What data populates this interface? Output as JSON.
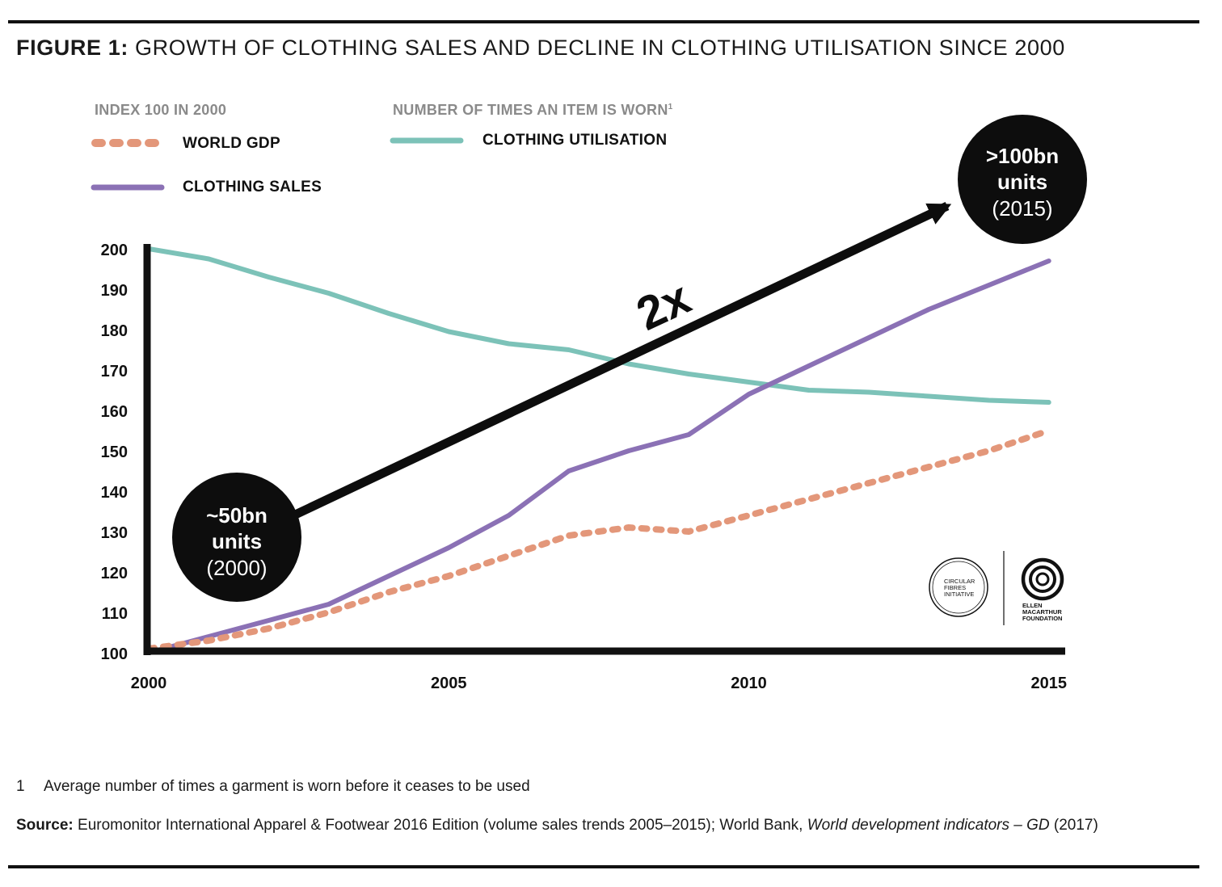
{
  "header": {
    "figure_label": "FIGURE 1:",
    "title": "GROWTH OF CLOTHING SALES AND DECLINE IN CLOTHING UTILISATION SINCE 2000"
  },
  "legend": {
    "left_heading": "INDEX 100 IN 2000",
    "right_heading": "NUMBER OF TIMES AN ITEM IS WORN",
    "right_heading_sup": "1",
    "items": {
      "gdp": "WORLD GDP",
      "sales": "CLOTHING SALES",
      "utilisation": "CLOTHING UTILISATION"
    }
  },
  "annotations": {
    "start": {
      "line1": "~50bn",
      "line2": "units",
      "line3": "(2000)"
    },
    "end": {
      "line1": ">100bn",
      "line2": "units",
      "line3": "(2015)"
    },
    "multiplier": "2x"
  },
  "logos": {
    "cfi": [
      "CIRCULAR",
      "FIBRES",
      "INITIATIVE"
    ],
    "emf": [
      "ELLEN",
      "MACARTHUR",
      "FOUNDATION"
    ]
  },
  "footnote": {
    "number": "1",
    "text": "Average number of times a garment is worn before it ceases to be used"
  },
  "source": {
    "label": "Source:",
    "text1": " Euromonitor International Apparel & Footwear 2016 Edition (volume sales trends 2005–2015); World Bank, ",
    "italic1": "World development indicators – GD",
    "text2": " (2017)"
  },
  "colors": {
    "gdp": "#e3977a",
    "sales": "#8b71b5",
    "utilisation": "#7cc2b8",
    "axis": "#111111",
    "annotation": "#0d0d0d"
  },
  "chart_data": {
    "type": "line",
    "ylim": [
      100,
      200
    ],
    "xlim": [
      2000,
      2015.3
    ],
    "y_ticks": [
      100,
      110,
      120,
      130,
      140,
      150,
      160,
      170,
      180,
      190,
      200
    ],
    "x_ticks": [
      "2000",
      "2005",
      "2010",
      "2015"
    ],
    "series": [
      {
        "name": "CLOTHING UTILISATION",
        "line_style": "solid",
        "x": [
          2000,
          2001,
          2002,
          2003,
          2004,
          2005,
          2006,
          2007,
          2008,
          2009,
          2010,
          2011,
          2012,
          2013,
          2014,
          2015
        ],
        "values": [
          200,
          197.5,
          193,
          189,
          184,
          179.5,
          176.5,
          175,
          171.5,
          169,
          167,
          165,
          164.5,
          163.5,
          162.5,
          162
        ]
      },
      {
        "name": "CLOTHING SALES",
        "line_style": "solid",
        "x": [
          2000,
          2001,
          2002,
          2003,
          2004,
          2005,
          2006,
          2007,
          2008,
          2009,
          2010,
          2011,
          2012,
          2013,
          2014,
          2015
        ],
        "values": [
          100,
          104,
          108,
          112,
          119,
          126,
          134,
          145,
          150,
          154,
          164,
          171,
          178,
          185,
          191,
          197
        ]
      },
      {
        "name": "WORLD GDP",
        "line_style": "dotted",
        "x": [
          2000,
          2001,
          2002,
          2003,
          2004,
          2005,
          2006,
          2007,
          2008,
          2009,
          2010,
          2011,
          2012,
          2013,
          2014,
          2015
        ],
        "values": [
          101,
          103,
          106,
          110,
          115,
          119,
          124,
          129,
          131,
          130,
          134,
          138,
          142,
          146,
          150,
          155
        ]
      }
    ]
  }
}
